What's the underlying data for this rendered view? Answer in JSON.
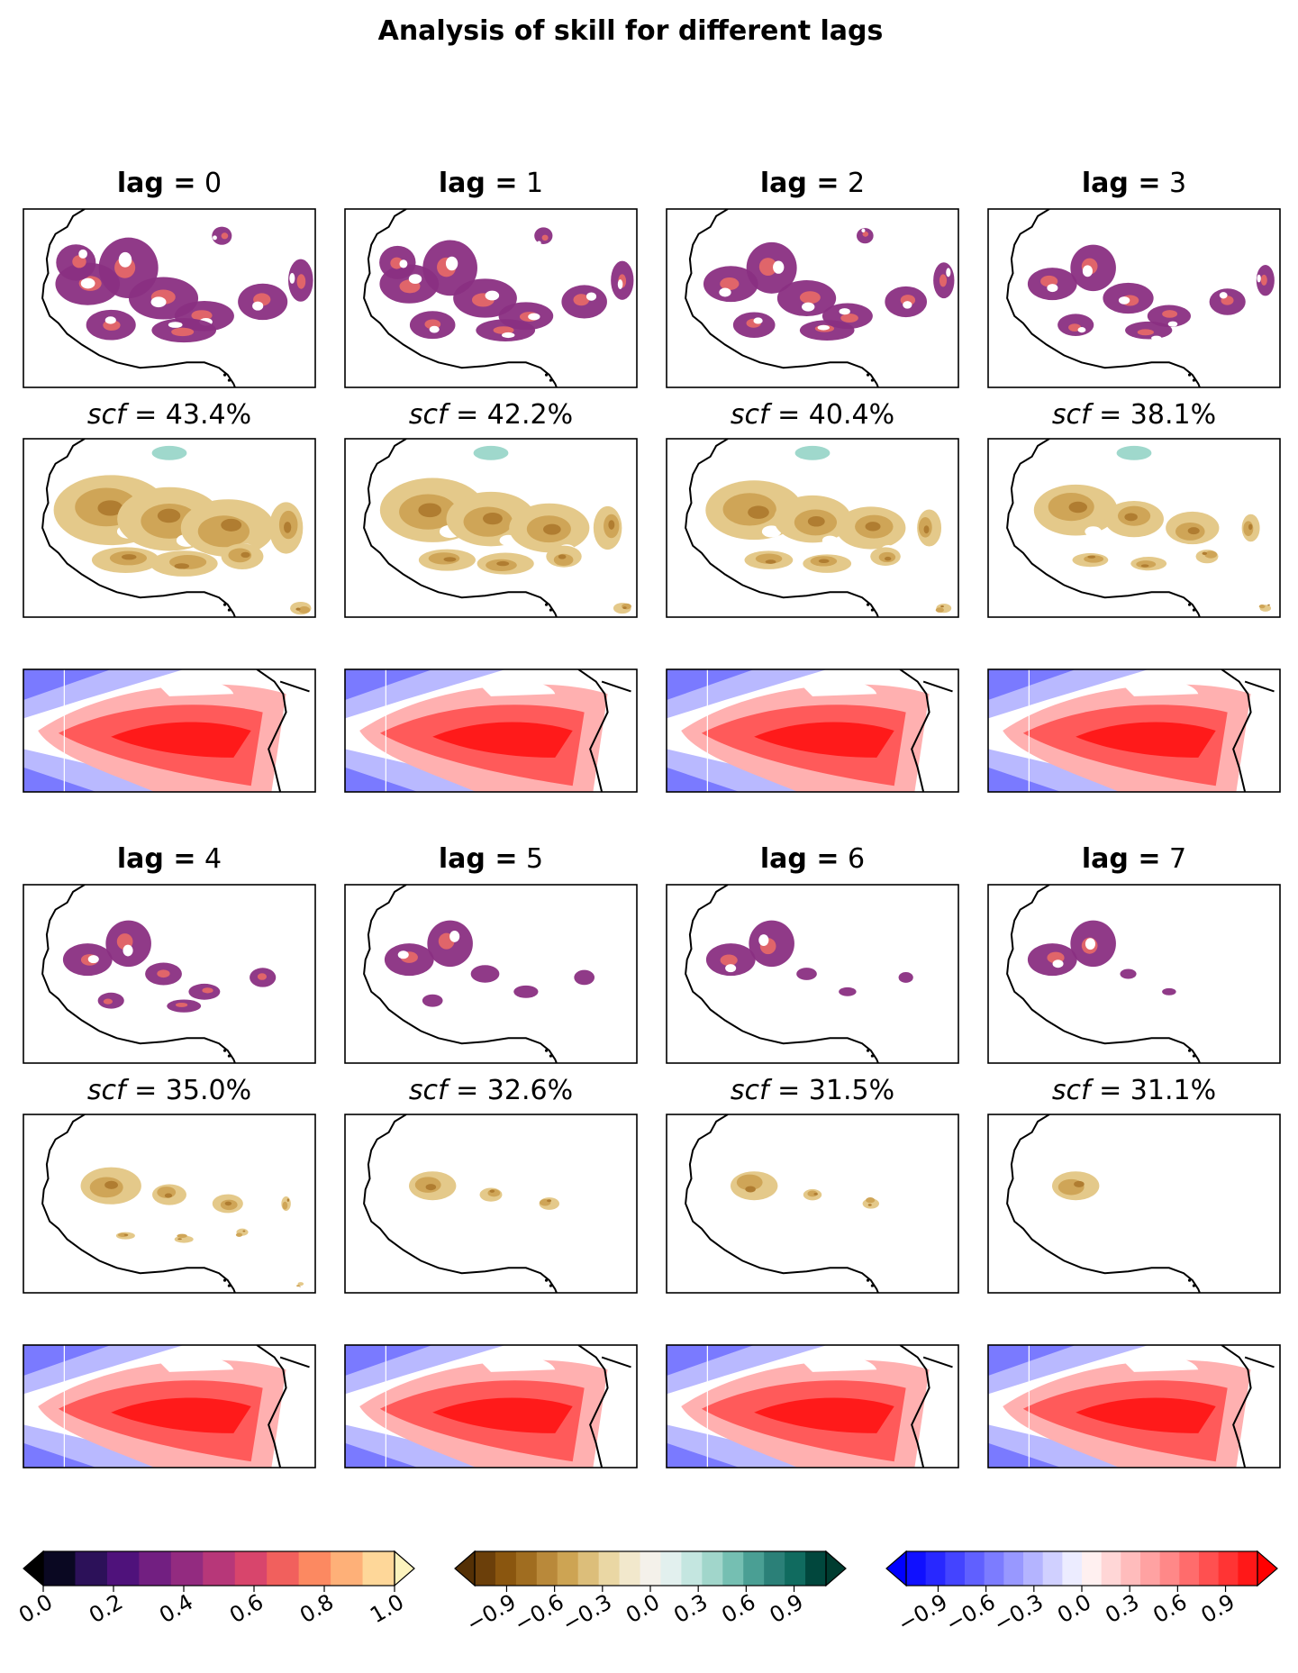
{
  "chart_data": {
    "type": "heatmap",
    "title": "Analysis of skill for different lags",
    "panels": [
      {
        "lag_label": "lag",
        "lag_value": "0",
        "scf_label": "scf",
        "scf_value": "43.4%",
        "scf": 43.4,
        "skill_extent": 0.85
      },
      {
        "lag_label": "lag",
        "lag_value": "1",
        "scf_label": "scf",
        "scf_value": "42.2%",
        "scf": 42.2,
        "skill_extent": 0.78
      },
      {
        "lag_label": "lag",
        "lag_value": "2",
        "scf_label": "scf",
        "scf_value": "40.4%",
        "scf": 40.4,
        "skill_extent": 0.72
      },
      {
        "lag_label": "lag",
        "lag_value": "3",
        "scf_label": "scf",
        "scf_value": "38.1%",
        "scf": 38.1,
        "skill_extent": 0.62
      },
      {
        "lag_label": "lag",
        "lag_value": "4",
        "scf_label": "scf",
        "scf_value": "35.0%",
        "scf": 35.0,
        "skill_extent": 0.45
      },
      {
        "lag_label": "lag",
        "lag_value": "5",
        "scf_label": "scf",
        "scf_value": "32.6%",
        "scf": 32.6,
        "skill_extent": 0.35
      },
      {
        "lag_label": "lag",
        "lag_value": "6",
        "scf_label": "scf",
        "scf_value": "31.5%",
        "scf": 31.5,
        "skill_extent": 0.25
      },
      {
        "lag_label": "lag",
        "lag_value": "7",
        "scf_label": "scf",
        "scf_value": "31.1%",
        "scf": 31.1,
        "skill_extent": 0.2
      }
    ],
    "colorbars": [
      {
        "name": "magma",
        "ticks": [
          "0.0",
          "0.2",
          "0.4",
          "0.6",
          "0.8",
          "1.0"
        ],
        "tick_values": [
          0,
          0.2,
          0.4,
          0.6,
          0.8,
          1.0
        ],
        "range": [
          0,
          1
        ],
        "colors": [
          "#0a0822",
          "#2c1159",
          "#4f127b",
          "#721f81",
          "#932b80",
          "#b73779",
          "#d8456c",
          "#f1605d",
          "#fc8961",
          "#feb078",
          "#fed799"
        ],
        "extend_max": "#fcf3bd"
      },
      {
        "name": "BrBG",
        "ticks": [
          "−0.9",
          "−0.6",
          "−0.3",
          "0.0",
          "0.3",
          "0.6",
          "0.9"
        ],
        "tick_values": [
          -0.9,
          -0.6,
          -0.3,
          0,
          0.3,
          0.6,
          0.9
        ],
        "range": [
          -1.1,
          1.1
        ],
        "colors": [
          "#6b3f0a",
          "#8a560f",
          "#a06d20",
          "#b9893a",
          "#cda453",
          "#dcbe7a",
          "#ead7a4",
          "#f2e8cc",
          "#f4f1ea",
          "#e2f0ee",
          "#c4e6e0",
          "#a1d6cb",
          "#75bfb2",
          "#4a9f94",
          "#2b8078",
          "#106b5f",
          "#01473d"
        ],
        "extend_min": "#543005",
        "extend_max": "#003c30"
      },
      {
        "name": "bwr",
        "ticks": [
          "−0.9",
          "−0.6",
          "−0.3",
          "0.0",
          "0.3",
          "0.6",
          "0.9"
        ],
        "tick_values": [
          -0.9,
          -0.6,
          -0.3,
          0,
          0.3,
          0.6,
          0.9
        ],
        "range": [
          -1.1,
          1.1
        ],
        "colors": [
          "#1010ff",
          "#2828ff",
          "#4444ff",
          "#6060ff",
          "#7c7cff",
          "#9898ff",
          "#b4b4ff",
          "#d0d0ff",
          "#ececff",
          "#fff0f0",
          "#ffd6d6",
          "#ffbcbc",
          "#ffa2a2",
          "#ff8888",
          "#ff6c6c",
          "#ff5050",
          "#ff3434",
          "#ff1818"
        ],
        "extend_min": "#0000ff",
        "extend_max": "#ff0000"
      }
    ],
    "colors": {
      "skill": "#8a2f82",
      "skill_hot": "#e0656a",
      "precip_light": "#e4c98a",
      "precip_mid": "#cfa557",
      "precip_dark": "#b07d31",
      "teal": "#9fd8cc",
      "sst_pos_light": "#ffb0b0",
      "sst_pos_mid": "#ff5a5a",
      "sst_pos_dark": "#ff1a1a",
      "sst_neg": "#7a7aff",
      "sst_neg_light": "#b9b9ff"
    }
  }
}
